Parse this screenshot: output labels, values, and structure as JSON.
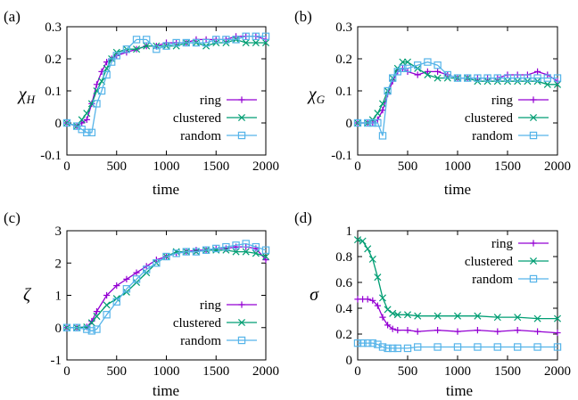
{
  "colors": {
    "ring": "#9400d3",
    "clustered": "#009e73",
    "random": "#56b4e9",
    "frame": "#000000"
  },
  "marker_icons": {
    "ring": "plus-marker-icon",
    "clustered": "cross-marker-icon",
    "random": "open-square-marker-icon"
  },
  "chart_data": [
    {
      "type": "line",
      "panel_label": "(a)",
      "xlabel": "time",
      "ylabel_base": "χ",
      "ylabel_sub": "H",
      "xlim": [
        0,
        2000
      ],
      "ylim": [
        -0.1,
        0.3
      ],
      "xticks": [
        0,
        500,
        1000,
        1500,
        2000
      ],
      "yticks": [
        -0.1,
        0,
        0.1,
        0.2,
        0.3
      ],
      "ytick_labels": [
        "-0.1",
        "0",
        "0.1",
        "0.2",
        "0.3"
      ],
      "legend_position": "bottom-right",
      "series": [
        {
          "name": "ring",
          "marker": "plus",
          "x": [
            0,
            100,
            150,
            200,
            250,
            300,
            350,
            400,
            450,
            500,
            600,
            700,
            800,
            900,
            1000,
            1100,
            1200,
            1300,
            1400,
            1500,
            1600,
            1700,
            1800,
            1900,
            2000
          ],
          "y": [
            0,
            -0.01,
            0.0,
            0.01,
            0.06,
            0.12,
            0.16,
            0.19,
            0.2,
            0.21,
            0.22,
            0.23,
            0.24,
            0.24,
            0.25,
            0.25,
            0.25,
            0.26,
            0.26,
            0.26,
            0.26,
            0.27,
            0.27,
            0.27,
            0.26
          ]
        },
        {
          "name": "clustered",
          "marker": "cross",
          "x": [
            0,
            100,
            150,
            200,
            250,
            300,
            350,
            400,
            450,
            500,
            600,
            700,
            800,
            900,
            1000,
            1100,
            1200,
            1300,
            1400,
            1500,
            1600,
            1700,
            1800,
            1900,
            2000
          ],
          "y": [
            0,
            -0.01,
            0.01,
            0.03,
            0.06,
            0.1,
            0.13,
            0.17,
            0.2,
            0.22,
            0.23,
            0.23,
            0.24,
            0.24,
            0.24,
            0.24,
            0.25,
            0.25,
            0.24,
            0.25,
            0.25,
            0.26,
            0.25,
            0.25,
            0.25
          ]
        },
        {
          "name": "random",
          "marker": "square",
          "x": [
            0,
            100,
            150,
            200,
            250,
            300,
            350,
            400,
            450,
            500,
            600,
            700,
            800,
            900,
            1000,
            1100,
            1200,
            1300,
            1400,
            1500,
            1600,
            1700,
            1800,
            1900,
            2000
          ],
          "y": [
            0,
            -0.01,
            -0.02,
            -0.03,
            -0.03,
            0.06,
            0.1,
            0.15,
            0.19,
            0.21,
            0.23,
            0.26,
            0.26,
            0.23,
            0.24,
            0.25,
            0.25,
            0.25,
            0.25,
            0.26,
            0.26,
            0.26,
            0.27,
            0.27,
            0.27
          ]
        }
      ]
    },
    {
      "type": "line",
      "panel_label": "(b)",
      "xlabel": "time",
      "ylabel_base": "χ",
      "ylabel_sub": "G",
      "xlim": [
        0,
        2000
      ],
      "ylim": [
        -0.1,
        0.3
      ],
      "xticks": [
        0,
        500,
        1000,
        1500,
        2000
      ],
      "yticks": [
        -0.1,
        0,
        0.1,
        0.2,
        0.3
      ],
      "ytick_labels": [
        "-0.1",
        "0",
        "0.1",
        "0.2",
        "0.3"
      ],
      "legend_position": "bottom-right",
      "series": [
        {
          "name": "ring",
          "marker": "plus",
          "x": [
            0,
            100,
            150,
            200,
            250,
            300,
            350,
            400,
            450,
            500,
            600,
            700,
            800,
            900,
            1000,
            1100,
            1200,
            1300,
            1400,
            1500,
            1600,
            1700,
            1800,
            1900,
            2000
          ],
          "y": [
            0,
            0.0,
            0.0,
            0.01,
            0.04,
            0.09,
            0.13,
            0.16,
            0.17,
            0.16,
            0.15,
            0.16,
            0.16,
            0.15,
            0.14,
            0.14,
            0.14,
            0.14,
            0.14,
            0.15,
            0.15,
            0.15,
            0.16,
            0.15,
            0.13
          ]
        },
        {
          "name": "clustered",
          "marker": "cross",
          "x": [
            0,
            100,
            150,
            200,
            250,
            300,
            350,
            400,
            450,
            500,
            600,
            700,
            800,
            900,
            1000,
            1100,
            1200,
            1300,
            1400,
            1500,
            1600,
            1700,
            1800,
            1900,
            2000
          ],
          "y": [
            0,
            0.0,
            0.01,
            0.03,
            0.06,
            0.1,
            0.14,
            0.17,
            0.19,
            0.19,
            0.17,
            0.15,
            0.14,
            0.14,
            0.14,
            0.14,
            0.13,
            0.13,
            0.13,
            0.13,
            0.13,
            0.13,
            0.13,
            0.12,
            0.12
          ]
        },
        {
          "name": "random",
          "marker": "square",
          "x": [
            0,
            100,
            150,
            200,
            250,
            300,
            350,
            400,
            450,
            500,
            600,
            700,
            800,
            900,
            1000,
            1100,
            1200,
            1300,
            1400,
            1500,
            1600,
            1700,
            1800,
            1900,
            2000
          ],
          "y": [
            0,
            0.0,
            0.0,
            0.0,
            -0.04,
            0.1,
            0.14,
            0.16,
            0.17,
            0.17,
            0.18,
            0.19,
            0.18,
            0.15,
            0.14,
            0.14,
            0.14,
            0.14,
            0.14,
            0.14,
            0.14,
            0.14,
            0.14,
            0.14,
            0.14
          ]
        }
      ]
    },
    {
      "type": "line",
      "panel_label": "(c)",
      "xlabel": "time",
      "ylabel_base": "ζ",
      "ylabel_sub": "",
      "xlim": [
        0,
        2000
      ],
      "ylim": [
        -1,
        3
      ],
      "xticks": [
        0,
        500,
        1000,
        1500,
        2000
      ],
      "yticks": [
        -1,
        0,
        1,
        2,
        3
      ],
      "ytick_labels": [
        "-1",
        "0",
        "1",
        "2",
        "3"
      ],
      "legend_position": "bottom-right",
      "series": [
        {
          "name": "ring",
          "marker": "plus",
          "x": [
            0,
            100,
            200,
            250,
            300,
            400,
            500,
            600,
            700,
            800,
            900,
            1000,
            1100,
            1200,
            1300,
            1400,
            1500,
            1600,
            1700,
            1800,
            1900,
            2000
          ],
          "y": [
            0,
            0,
            0.02,
            0.2,
            0.5,
            1.0,
            1.3,
            1.5,
            1.7,
            1.9,
            2.1,
            2.2,
            2.3,
            2.35,
            2.4,
            2.4,
            2.45,
            2.45,
            2.5,
            2.5,
            2.45,
            2.1
          ]
        },
        {
          "name": "clustered",
          "marker": "cross",
          "x": [
            0,
            100,
            200,
            250,
            300,
            400,
            500,
            600,
            700,
            800,
            900,
            1000,
            1100,
            1200,
            1300,
            1400,
            1500,
            1600,
            1700,
            1800,
            1900,
            2000
          ],
          "y": [
            0,
            0,
            0.02,
            0.15,
            0.35,
            0.7,
            0.9,
            1.1,
            1.4,
            1.7,
            2.0,
            2.2,
            2.35,
            2.35,
            2.35,
            2.4,
            2.4,
            2.4,
            2.35,
            2.35,
            2.3,
            2.2
          ]
        },
        {
          "name": "random",
          "marker": "square",
          "x": [
            0,
            100,
            200,
            250,
            300,
            400,
            500,
            600,
            700,
            800,
            900,
            1000,
            1100,
            1200,
            1300,
            1400,
            1500,
            1600,
            1700,
            1800,
            1900,
            2000
          ],
          "y": [
            0,
            0,
            -0.05,
            -0.1,
            -0.05,
            0.4,
            0.8,
            1.2,
            1.5,
            1.8,
            2.0,
            2.2,
            2.3,
            2.35,
            2.35,
            2.4,
            2.45,
            2.5,
            2.55,
            2.6,
            2.5,
            2.4
          ]
        }
      ]
    },
    {
      "type": "line",
      "panel_label": "(d)",
      "xlabel": "time",
      "ylabel_base": "σ",
      "ylabel_sub": "",
      "xlim": [
        0,
        2000
      ],
      "ylim": [
        0,
        1
      ],
      "xticks": [
        0,
        500,
        1000,
        1500,
        2000
      ],
      "yticks": [
        0,
        0.2,
        0.4,
        0.6,
        0.8,
        1
      ],
      "ytick_labels": [
        "0",
        "0.2",
        "0.4",
        "0.6",
        "0.8",
        "1"
      ],
      "legend_position": "top-right",
      "series": [
        {
          "name": "ring",
          "marker": "plus",
          "x": [
            0,
            50,
            100,
            150,
            200,
            250,
            300,
            350,
            400,
            500,
            600,
            800,
            1000,
            1200,
            1400,
            1600,
            1800,
            2000
          ],
          "y": [
            0.47,
            0.47,
            0.47,
            0.46,
            0.42,
            0.33,
            0.27,
            0.24,
            0.23,
            0.23,
            0.22,
            0.23,
            0.22,
            0.23,
            0.22,
            0.23,
            0.22,
            0.21
          ]
        },
        {
          "name": "clustered",
          "marker": "cross",
          "x": [
            0,
            50,
            100,
            150,
            200,
            250,
            300,
            350,
            400,
            500,
            600,
            800,
            1000,
            1200,
            1400,
            1600,
            1800,
            2000
          ],
          "y": [
            0.93,
            0.92,
            0.86,
            0.78,
            0.64,
            0.48,
            0.39,
            0.36,
            0.35,
            0.35,
            0.34,
            0.34,
            0.34,
            0.34,
            0.33,
            0.33,
            0.32,
            0.32
          ]
        },
        {
          "name": "random",
          "marker": "square",
          "x": [
            0,
            50,
            100,
            150,
            200,
            250,
            300,
            350,
            400,
            500,
            600,
            800,
            1000,
            1200,
            1400,
            1600,
            1800,
            2000
          ],
          "y": [
            0.13,
            0.13,
            0.13,
            0.13,
            0.12,
            0.1,
            0.09,
            0.09,
            0.09,
            0.09,
            0.1,
            0.1,
            0.1,
            0.1,
            0.1,
            0.1,
            0.1,
            0.1
          ]
        }
      ]
    }
  ]
}
